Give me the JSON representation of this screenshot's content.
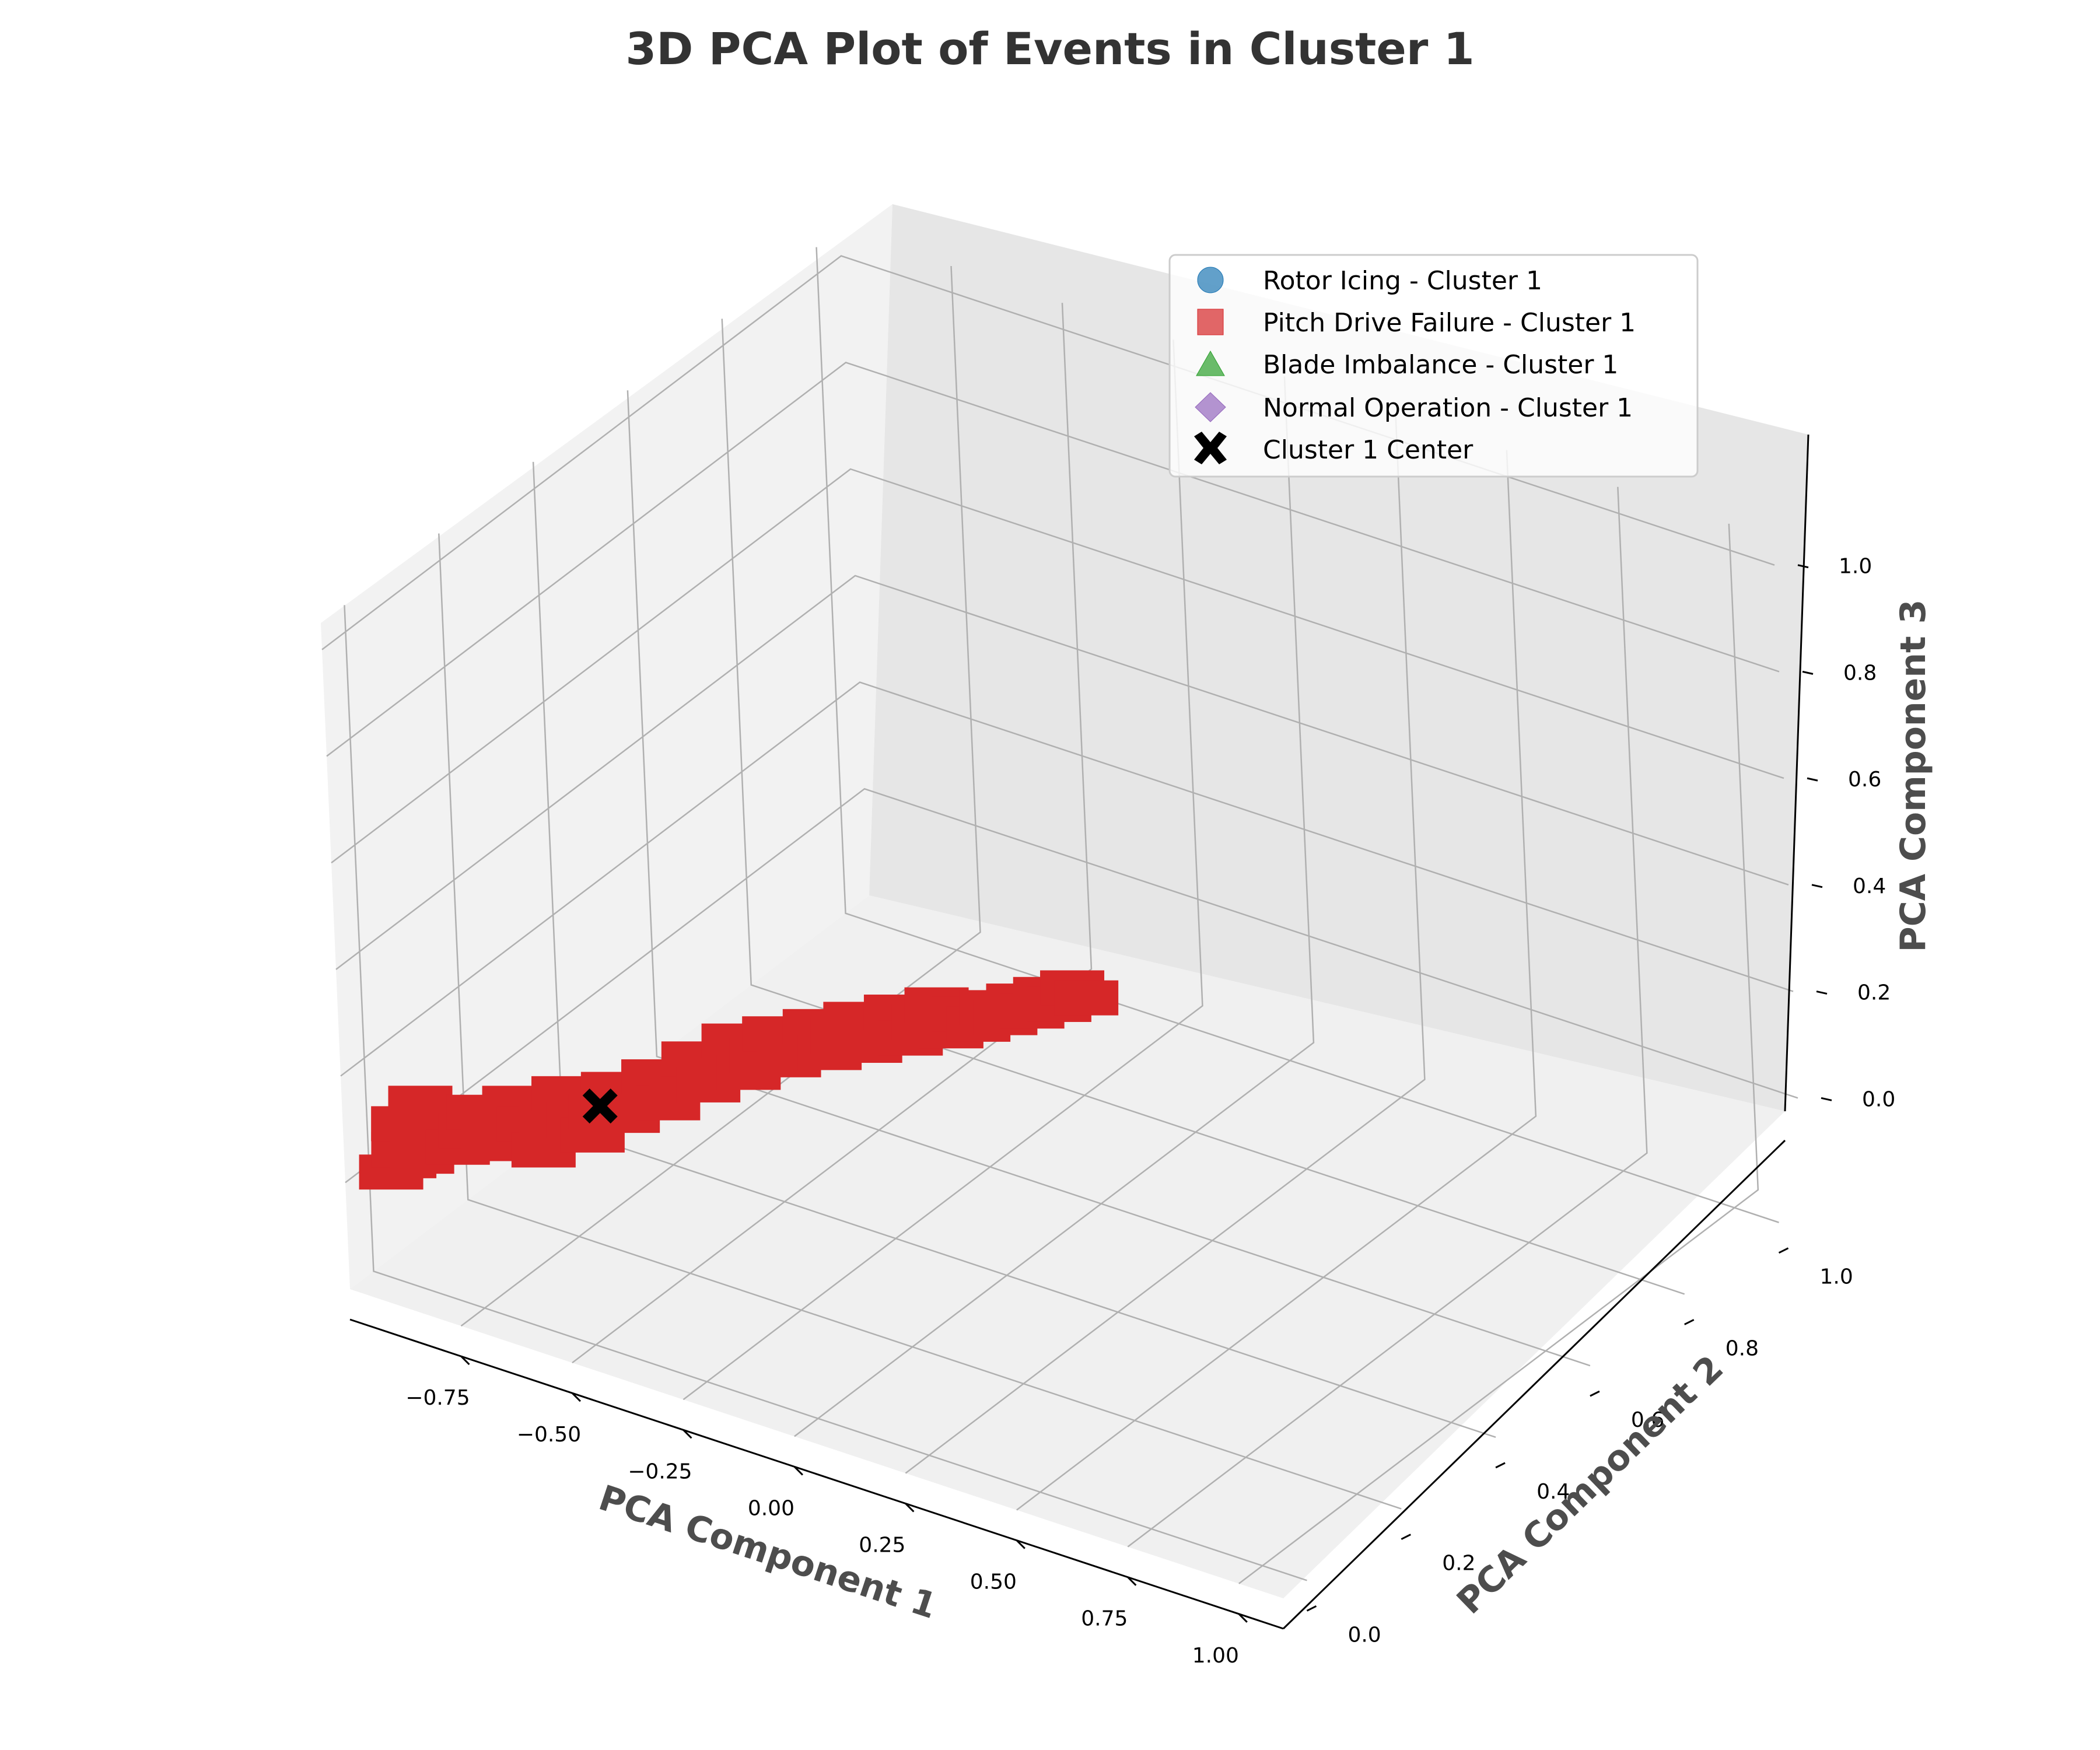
{
  "chart_data": {
    "type": "scatter",
    "title": "3D PCA Plot of Events in Cluster 1",
    "xlabel": "PCA Component 1",
    "ylabel": "PCA Component 2",
    "zlabel": "PCA Component 3",
    "xlim": [
      -1.0,
      1.1
    ],
    "ylim": [
      -0.05,
      1.05
    ],
    "zlim": [
      -0.2,
      1.05
    ],
    "xticks": [
      "−0.75",
      "−0.50",
      "−0.25",
      "0.00",
      "0.25",
      "0.50",
      "0.75",
      "1.00"
    ],
    "yticks": [
      "0.0",
      "0.2",
      "0.4",
      "0.6",
      "0.8",
      "1.0"
    ],
    "zticks": [
      "0.0",
      "0.2",
      "0.4",
      "0.6",
      "0.8",
      "1.0"
    ],
    "grid": true,
    "legend_position": "upper right",
    "series": [
      {
        "name": "Rotor Icing - Cluster 1",
        "marker": "circle",
        "color": "#1f77b4",
        "points": []
      },
      {
        "name": "Pitch Drive Failure - Cluster 1",
        "marker": "square",
        "color": "#d62728",
        "points_note": "",
        "points": [
          [
            -0.95,
            0.0,
            0.0
          ],
          [
            -0.93,
            0.01,
            0.02
          ],
          [
            -0.92,
            0.0,
            0.05
          ],
          [
            -0.94,
            0.02,
            0.08
          ],
          [
            -0.9,
            0.02,
            0.03
          ],
          [
            -0.88,
            0.03,
            0.07
          ],
          [
            -0.91,
            0.03,
            0.12
          ],
          [
            -0.86,
            0.03,
            0.1
          ],
          [
            -0.84,
            0.04,
            0.05
          ],
          [
            -0.82,
            0.05,
            0.08
          ],
          [
            -0.8,
            0.05,
            0.12
          ],
          [
            -0.78,
            0.06,
            0.06
          ],
          [
            -0.76,
            0.07,
            0.09
          ],
          [
            -0.74,
            0.07,
            0.14
          ],
          [
            -0.72,
            0.08,
            0.1
          ],
          [
            -0.7,
            0.09,
            0.05
          ],
          [
            -0.68,
            0.09,
            0.12
          ],
          [
            -0.66,
            0.1,
            0.16
          ],
          [
            -0.64,
            0.11,
            0.11
          ],
          [
            -0.62,
            0.12,
            0.08
          ],
          [
            -0.6,
            0.12,
            0.13
          ],
          [
            -0.58,
            0.13,
            0.17
          ],
          [
            -0.56,
            0.14,
            0.12
          ],
          [
            -0.54,
            0.15,
            0.15
          ],
          [
            -0.52,
            0.16,
            0.19
          ],
          [
            -0.5,
            0.17,
            0.14
          ],
          [
            -0.48,
            0.18,
            0.18
          ],
          [
            -0.46,
            0.19,
            0.22
          ],
          [
            -0.44,
            0.2,
            0.17
          ],
          [
            -0.42,
            0.21,
            0.2
          ],
          [
            -0.4,
            0.22,
            0.25
          ],
          [
            -0.38,
            0.23,
            0.19
          ],
          [
            -0.36,
            0.24,
            0.22
          ],
          [
            -0.34,
            0.25,
            0.26
          ],
          [
            -0.32,
            0.26,
            0.21
          ],
          [
            -0.3,
            0.27,
            0.24
          ],
          [
            -0.28,
            0.28,
            0.27
          ],
          [
            -0.26,
            0.29,
            0.22
          ],
          [
            -0.24,
            0.3,
            0.25
          ],
          [
            -0.22,
            0.31,
            0.28
          ],
          [
            -0.2,
            0.32,
            0.23
          ],
          [
            -0.18,
            0.33,
            0.26
          ],
          [
            -0.16,
            0.34,
            0.29
          ],
          [
            -0.14,
            0.35,
            0.24
          ],
          [
            -0.12,
            0.36,
            0.27
          ],
          [
            -0.1,
            0.37,
            0.3
          ],
          [
            -0.08,
            0.38,
            0.25
          ],
          [
            -0.06,
            0.39,
            0.28
          ],
          [
            -0.04,
            0.4,
            0.26
          ],
          [
            -0.02,
            0.41,
            0.29
          ],
          [
            0.0,
            0.42,
            0.27
          ],
          [
            0.02,
            0.43,
            0.3
          ],
          [
            0.04,
            0.44,
            0.28
          ],
          [
            0.06,
            0.45,
            0.31
          ],
          [
            0.08,
            0.46,
            0.29
          ],
          [
            0.1,
            0.47,
            0.32
          ],
          [
            0.12,
            0.48,
            0.3
          ]
        ]
      },
      {
        "name": "Blade Imbalance - Cluster 1",
        "marker": "triangle",
        "color": "#2ca02c",
        "points": []
      },
      {
        "name": "Normal Operation - Cluster 1",
        "marker": "diamond",
        "color": "#9467bd",
        "points": []
      },
      {
        "name": "Cluster 1 Center",
        "marker": "x",
        "color": "#000000",
        "points": [
          [
            -0.6,
            0.12,
            0.14
          ]
        ]
      }
    ]
  }
}
